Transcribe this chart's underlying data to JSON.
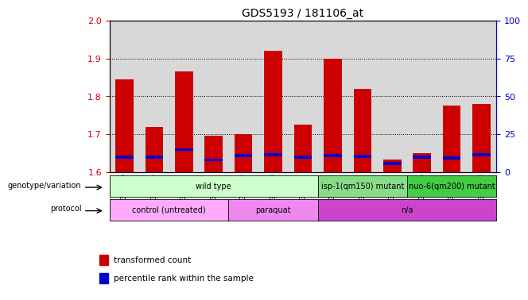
{
  "title": "GDS5193 / 181106_at",
  "samples": [
    "GSM1305989",
    "GSM1305990",
    "GSM1305991",
    "GSM1305992",
    "GSM1305999",
    "GSM1306000",
    "GSM1306001",
    "GSM1305993",
    "GSM1305994",
    "GSM1305995",
    "GSM1305996",
    "GSM1305997",
    "GSM1305998"
  ],
  "transformed_count": [
    1.845,
    1.72,
    1.865,
    1.695,
    1.7,
    1.92,
    1.725,
    1.9,
    1.82,
    1.632,
    1.65,
    1.775,
    1.78
  ],
  "percentile_rank_val": [
    1.635,
    1.635,
    1.655,
    1.628,
    1.64,
    1.641,
    1.636,
    1.64,
    1.638,
    1.618,
    1.635,
    1.633,
    1.642
  ],
  "bar_bottom": 1.6,
  "ylim_left": [
    1.6,
    2.0
  ],
  "ylim_right": [
    0,
    100
  ],
  "yticks_left": [
    1.6,
    1.7,
    1.8,
    1.9,
    2.0
  ],
  "yticks_right": [
    0,
    25,
    50,
    75,
    100
  ],
  "genotype_groups": [
    {
      "label": "wild type",
      "start": 0,
      "end": 7,
      "color": "#ccffcc"
    },
    {
      "label": "isp-1(qm150) mutant",
      "start": 7,
      "end": 10,
      "color": "#88dd88"
    },
    {
      "label": "nuo-6(qm200) mutant",
      "start": 10,
      "end": 13,
      "color": "#44cc44"
    }
  ],
  "protocol_groups": [
    {
      "label": "control (untreated)",
      "start": 0,
      "end": 4,
      "color": "#ffaaff"
    },
    {
      "label": "paraquat",
      "start": 4,
      "end": 7,
      "color": "#ee88ee"
    },
    {
      "label": "n/a",
      "start": 7,
      "end": 13,
      "color": "#cc44cc"
    }
  ],
  "bar_color_red": "#cc0000",
  "bar_color_blue": "#0000cc",
  "background_color": "#ffffff",
  "tick_color_left": "#cc0000",
  "tick_color_right": "#0000cc",
  "col_bg": "#d8d8d8",
  "legend_items": [
    {
      "label": "transformed count",
      "color": "#cc0000"
    },
    {
      "label": "percentile rank within the sample",
      "color": "#0000cc"
    }
  ],
  "bar_width": 0.6,
  "blue_bar_height": 0.008,
  "blue_bar_width": 0.6
}
